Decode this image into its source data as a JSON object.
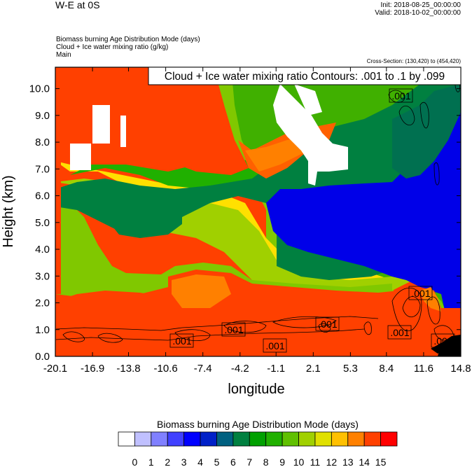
{
  "header": {
    "title_left": "W-E at 0S",
    "init": "Init: 2018-08-25_00:00:00",
    "valid": "Valid: 2018-10-02_00:00:00",
    "field_line1": "Biomass burning Age Distribution Mode   (days)",
    "field_line2": "Cloud + Ice water mixing ratio   (g/kg)",
    "field_line3": "Main",
    "cross_section": "Cross-Section: (130,420) to (454,420)"
  },
  "chart_data": {
    "type": "heatmap",
    "overlay": "contour",
    "contour_title": "Cloud + Ice water mixing ratio Contours: .001 to .1 by .099",
    "contour_labels": [
      ".001",
      ".001",
      ".001",
      ".001",
      ".001",
      ".001",
      ".001",
      ".001"
    ],
    "xlabel": "longitude",
    "ylabel": "Height (km)",
    "xlim": [
      -20.1,
      14.8
    ],
    "ylim": [
      0.0,
      10.8
    ],
    "x_ticks": [
      "-20.1",
      "-16.9",
      "-13.8",
      "-10.6",
      "-7.4",
      "-4.2",
      "-1.1",
      "2.1",
      "5.3",
      "8.4",
      "11.6",
      "14.8"
    ],
    "y_ticks": [
      "0.0",
      "1.0",
      "2.0",
      "3.0",
      "4.0",
      "5.0",
      "6.0",
      "7.0",
      "8.0",
      "9.0",
      "10.0"
    ],
    "colorbar": {
      "title": "Biomass burning Age Distribution Mode  (days)",
      "labels": [
        "0",
        "1",
        "2",
        "3",
        "4",
        "5",
        "6",
        "7",
        "8",
        "9",
        "10",
        "11",
        "12",
        "13",
        "14",
        "15"
      ],
      "colors": [
        "#ffffff",
        "#c0c0ff",
        "#8080ff",
        "#4040ff",
        "#0000ff",
        "#0020c8",
        "#006080",
        "#008040",
        "#00a000",
        "#20b000",
        "#60c000",
        "#a0d000",
        "#e0e000",
        "#ffc000",
        "#ff8000",
        "#ff4000",
        "#ff0000"
      ]
    }
  }
}
